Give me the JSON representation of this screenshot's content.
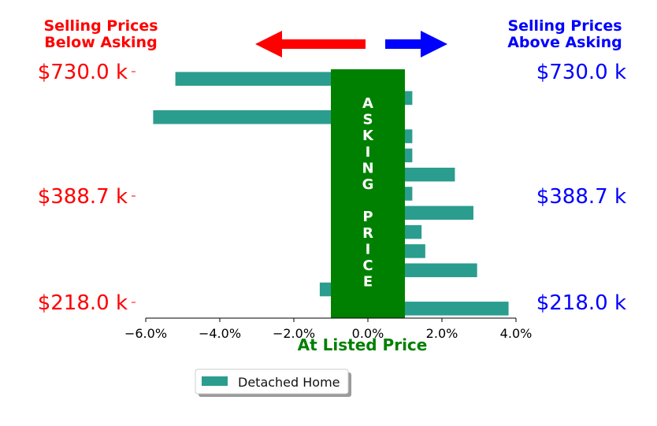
{
  "colors": {
    "below": "#ff0000",
    "above": "#0000ff",
    "bar": "#2a9d8f",
    "asking": "#008000",
    "white": "#ffffff"
  },
  "header": {
    "left_title": [
      "Selling Prices",
      "Below Asking"
    ],
    "right_title": [
      "Selling Prices",
      "Above Asking"
    ]
  },
  "asking_band": {
    "letters": [
      "A",
      "S",
      "K",
      "I",
      "N",
      "G",
      "",
      "P",
      "R",
      "I",
      "C",
      "E"
    ]
  },
  "chart_data": {
    "type": "bar",
    "orientation": "horizontal",
    "xlabel": "At Listed Price",
    "x_ticks": [
      -6.0,
      -4.0,
      -2.0,
      0.0,
      2.0,
      4.0
    ],
    "x_tick_labels": [
      "−6.0%",
      "−4.0%",
      "−2.0%",
      "0.0%",
      "2.0%",
      "4.0%"
    ],
    "y_tick_labels": [
      "$730.0 k",
      "$388.7 k",
      "$218.0 k"
    ],
    "x_range": [
      -6.6,
      4.4
    ],
    "asking_band_range": [
      -1.0,
      1.0
    ],
    "series": [
      {
        "name": "Detached Home",
        "values": [
          -5.2,
          1.2,
          -5.8,
          1.2,
          1.2,
          2.35,
          1.2,
          2.85,
          1.45,
          1.55,
          2.95,
          -1.3,
          3.8
        ]
      }
    ],
    "legend_position": "bottom-center"
  }
}
